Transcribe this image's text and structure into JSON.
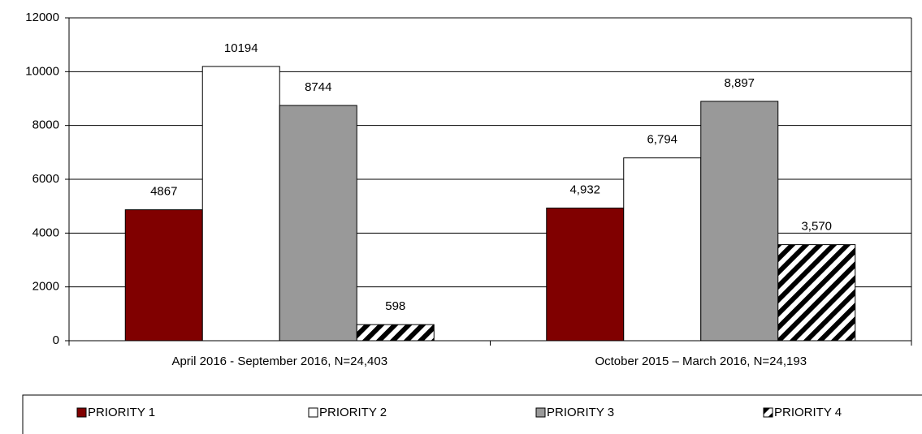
{
  "chart_data": {
    "type": "bar",
    "categories": [
      "April 2016 - September 2016, N=24,403",
      "October 2015 – March 2016, N=24,193"
    ],
    "series": [
      {
        "name": "PRIORITY 1",
        "color": "#800000",
        "values": [
          4867,
          4932
        ],
        "value_labels": [
          "4867",
          "4,932"
        ]
      },
      {
        "name": "PRIORITY 2",
        "color": "#ffffff",
        "values": [
          10194,
          6794
        ],
        "value_labels": [
          "10194",
          "6,794"
        ]
      },
      {
        "name": "PRIORITY 3",
        "color": "#999999",
        "values": [
          8744,
          8897
        ],
        "value_labels": [
          "8744",
          "8,897"
        ]
      },
      {
        "name": "PRIORITY 4",
        "color": "#000000",
        "pattern": "hatch",
        "values": [
          598,
          3570
        ],
        "value_labels": [
          "598",
          "3,570"
        ]
      }
    ],
    "ylim": [
      0,
      12000
    ],
    "yticks": [
      0,
      2000,
      4000,
      6000,
      8000,
      10000,
      12000
    ],
    "grid": true,
    "legend": "bottom"
  }
}
